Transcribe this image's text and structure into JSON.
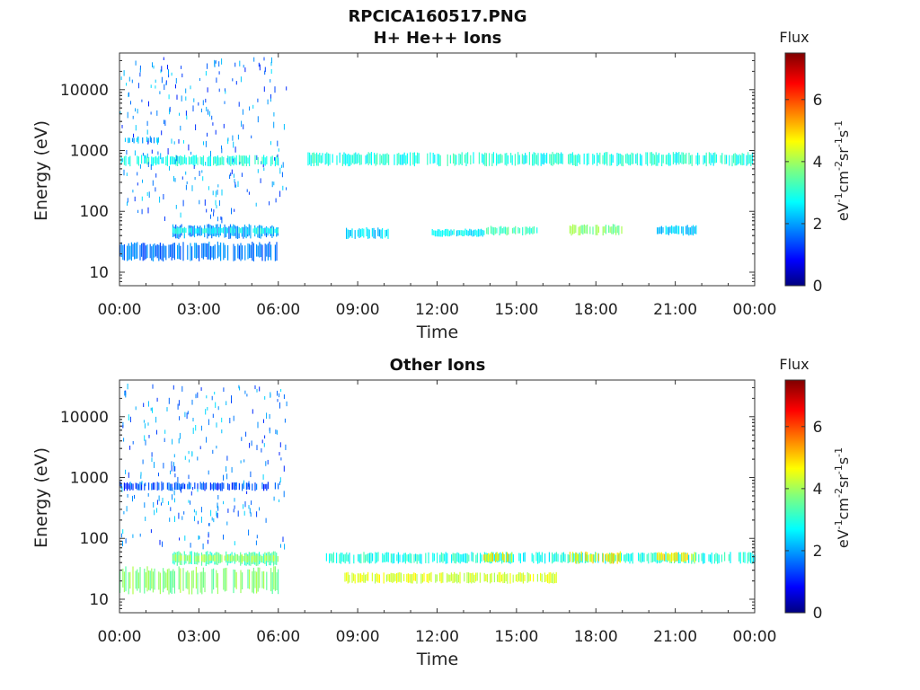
{
  "figure": {
    "title": "RPCICA160517.PNG"
  },
  "chart_data": [
    {
      "type": "heatmap",
      "title": "H+ He++ Ions",
      "xlabel": "Time",
      "ylabel": "Energy (eV)",
      "x_ticks": [
        "00:00",
        "03:00",
        "06:00",
        "09:00",
        "12:00",
        "15:00",
        "18:00",
        "21:00",
        "00:00"
      ],
      "y_ticks": [
        "10",
        "100",
        "1000",
        "10000"
      ],
      "y_scale": "log",
      "x_range_hours": [
        0,
        24
      ],
      "y_range": [
        6,
        40000
      ],
      "colorbar": {
        "title": "Flux",
        "ticks": [
          "0",
          "2",
          "4",
          "6"
        ],
        "range": [
          0,
          7.5
        ]
      },
      "features": [
        {
          "t0": 0.0,
          "t1": 6.0,
          "e0": 15,
          "e1": 32,
          "flux": 1.8
        },
        {
          "t0": 2.0,
          "t1": 6.0,
          "e0": 35,
          "e1": 62,
          "flux": 2.0
        },
        {
          "t0": 2.0,
          "t1": 6.0,
          "e0": 42,
          "e1": 55,
          "flux": 2.9
        },
        {
          "t0": 0.0,
          "t1": 6.0,
          "e0": 550,
          "e1": 850,
          "flux": 3.0
        },
        {
          "t0": 0.2,
          "t1": 1.5,
          "e0": 1300,
          "e1": 1700,
          "flux": 2.3
        },
        {
          "t0": 7.0,
          "t1": 24.0,
          "e0": 550,
          "e1": 950,
          "flux": 3.0
        },
        {
          "t0": 8.5,
          "t1": 10.2,
          "e0": 35,
          "e1": 55,
          "flux": 2.6
        },
        {
          "t0": 11.8,
          "t1": 13.8,
          "e0": 38,
          "e1": 52,
          "flux": 2.8
        },
        {
          "t0": 13.8,
          "t1": 15.8,
          "e0": 40,
          "e1": 58,
          "flux": 3.3
        },
        {
          "t0": 17.0,
          "t1": 19.0,
          "e0": 40,
          "e1": 62,
          "flux": 3.8
        },
        {
          "t0": 20.3,
          "t1": 21.8,
          "e0": 40,
          "e1": 60,
          "flux": 2.5
        }
      ]
    },
    {
      "type": "heatmap",
      "title": "Other Ions",
      "xlabel": "Time",
      "ylabel": "Energy (eV)",
      "x_ticks": [
        "00:00",
        "03:00",
        "06:00",
        "09:00",
        "12:00",
        "15:00",
        "18:00",
        "21:00",
        "00:00"
      ],
      "y_ticks": [
        "10",
        "100",
        "1000",
        "10000"
      ],
      "y_scale": "log",
      "x_range_hours": [
        0,
        24
      ],
      "y_range": [
        6,
        40000
      ],
      "colorbar": {
        "title": "Flux",
        "ticks": [
          "0",
          "2",
          "4",
          "6"
        ],
        "range": [
          0,
          7.5
        ]
      },
      "features": [
        {
          "t0": 0.0,
          "t1": 6.0,
          "e0": 12,
          "e1": 35,
          "flux": 3.8
        },
        {
          "t0": 2.0,
          "t1": 6.0,
          "e0": 35,
          "e1": 62,
          "flux": 3.4
        },
        {
          "t0": 2.0,
          "t1": 6.0,
          "e0": 40,
          "e1": 55,
          "flux": 4.0
        },
        {
          "t0": 0.0,
          "t1": 6.0,
          "e0": 600,
          "e1": 850,
          "flux": 1.5
        },
        {
          "t0": 7.8,
          "t1": 24.0,
          "e0": 38,
          "e1": 60,
          "flux": 3.0
        },
        {
          "t0": 13.7,
          "t1": 14.8,
          "e0": 40,
          "e1": 60,
          "flux": 4.8
        },
        {
          "t0": 17.0,
          "t1": 19.0,
          "e0": 38,
          "e1": 62,
          "flux": 4.8
        },
        {
          "t0": 20.3,
          "t1": 21.8,
          "e0": 40,
          "e1": 60,
          "flux": 4.8
        },
        {
          "t0": 8.5,
          "t1": 16.5,
          "e0": 18,
          "e1": 28,
          "flux": 4.4
        }
      ]
    }
  ],
  "colors": {
    "axis": "#222222",
    "background": "#ffffff"
  }
}
